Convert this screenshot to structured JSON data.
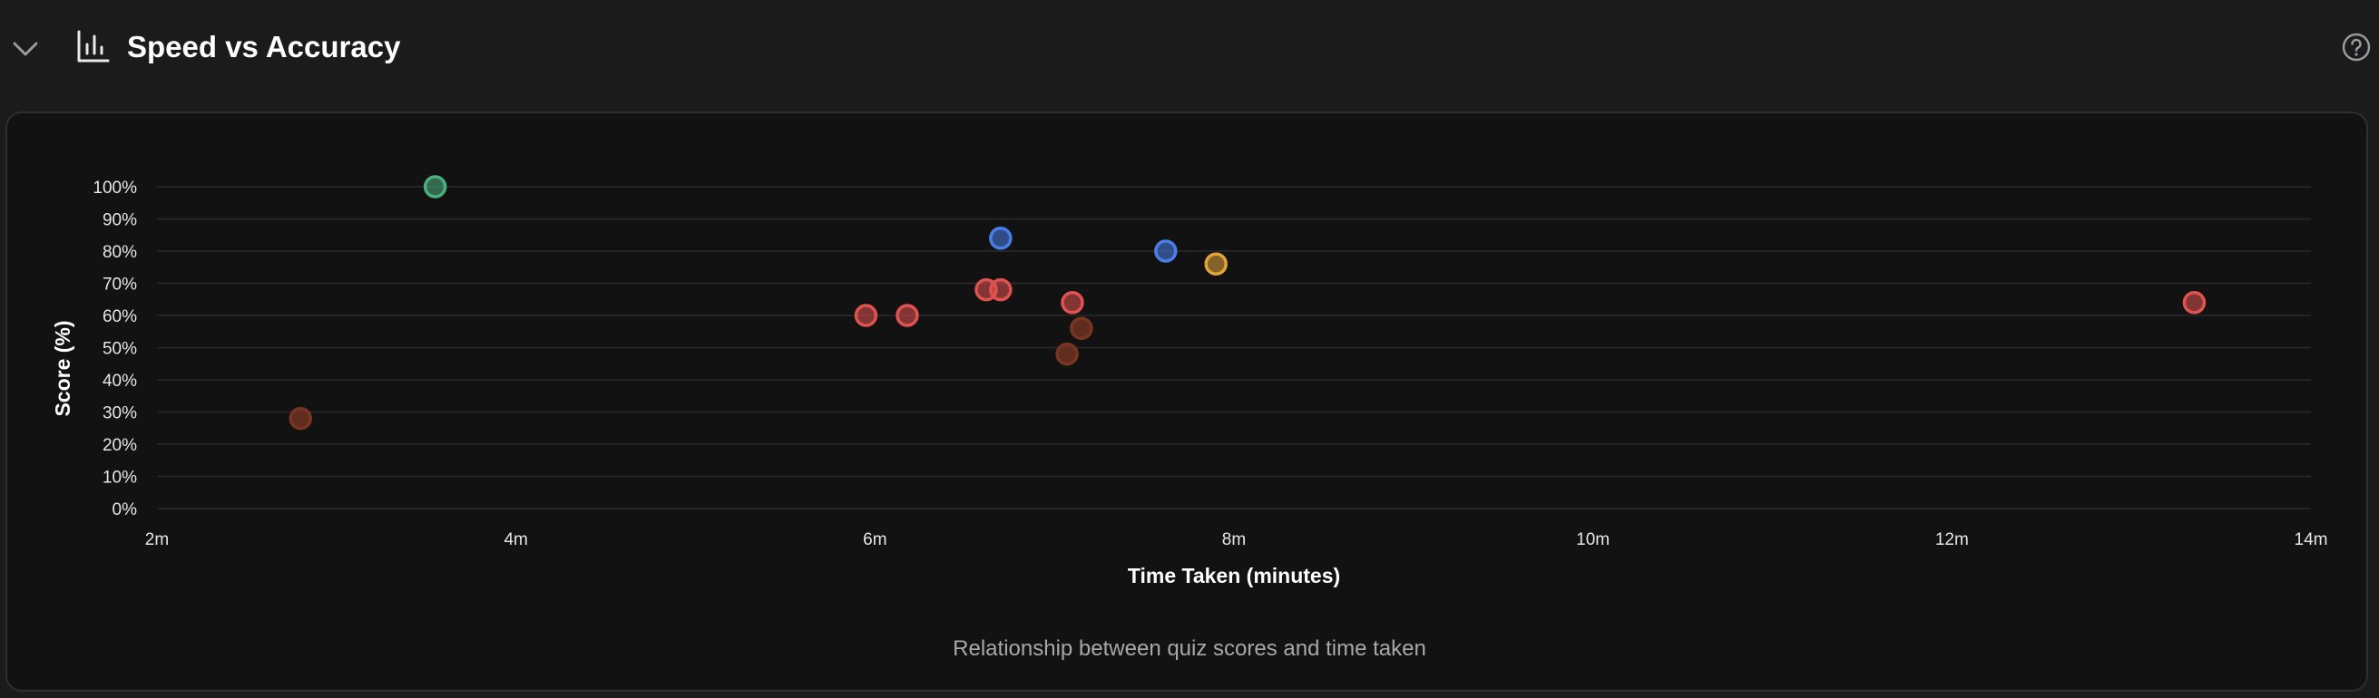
{
  "header": {
    "title": "Speed vs Accuracy",
    "collapse_icon": "chevron-down-icon",
    "chart_icon": "bar-chart-icon",
    "help_icon": "help-circle-icon"
  },
  "caption": "Relationship between quiz scores and time taken",
  "colors": {
    "green": "#4caf7d",
    "blue": "#4a7de8",
    "orange": "#e0a53a",
    "red": "#e0524f",
    "dark_red": "#7a3522",
    "grid": "#2a2a2c",
    "tick_text": "#e6e6e6"
  },
  "chart_data": {
    "type": "scatter",
    "title": "",
    "xlabel": "Time Taken (minutes)",
    "ylabel": "Score (%)",
    "xlim": [
      2,
      14
    ],
    "ylim": [
      0,
      100
    ],
    "x_ticks": [
      2,
      4,
      6,
      8,
      10,
      12,
      14
    ],
    "x_tick_labels": [
      "2m",
      "4m",
      "6m",
      "8m",
      "10m",
      "12m",
      "14m"
    ],
    "y_ticks": [
      0,
      10,
      20,
      30,
      40,
      50,
      60,
      70,
      80,
      90,
      100
    ],
    "y_tick_labels": [
      "0%",
      "10%",
      "20%",
      "30%",
      "40%",
      "50%",
      "60%",
      "70%",
      "80%",
      "90%",
      "100%"
    ],
    "grid": true,
    "points": [
      {
        "x": 3.55,
        "y": 100,
        "color": "green"
      },
      {
        "x": 2.8,
        "y": 28,
        "color": "dark_red"
      },
      {
        "x": 5.95,
        "y": 60,
        "color": "red"
      },
      {
        "x": 6.18,
        "y": 60,
        "color": "red"
      },
      {
        "x": 6.62,
        "y": 68,
        "color": "red"
      },
      {
        "x": 6.7,
        "y": 68,
        "color": "red"
      },
      {
        "x": 6.7,
        "y": 84,
        "color": "blue"
      },
      {
        "x": 7.1,
        "y": 64,
        "color": "red"
      },
      {
        "x": 7.15,
        "y": 56,
        "color": "dark_red"
      },
      {
        "x": 7.07,
        "y": 48,
        "color": "dark_red"
      },
      {
        "x": 7.62,
        "y": 80,
        "color": "blue"
      },
      {
        "x": 7.9,
        "y": 76,
        "color": "orange"
      },
      {
        "x": 13.35,
        "y": 64,
        "color": "red"
      }
    ]
  }
}
